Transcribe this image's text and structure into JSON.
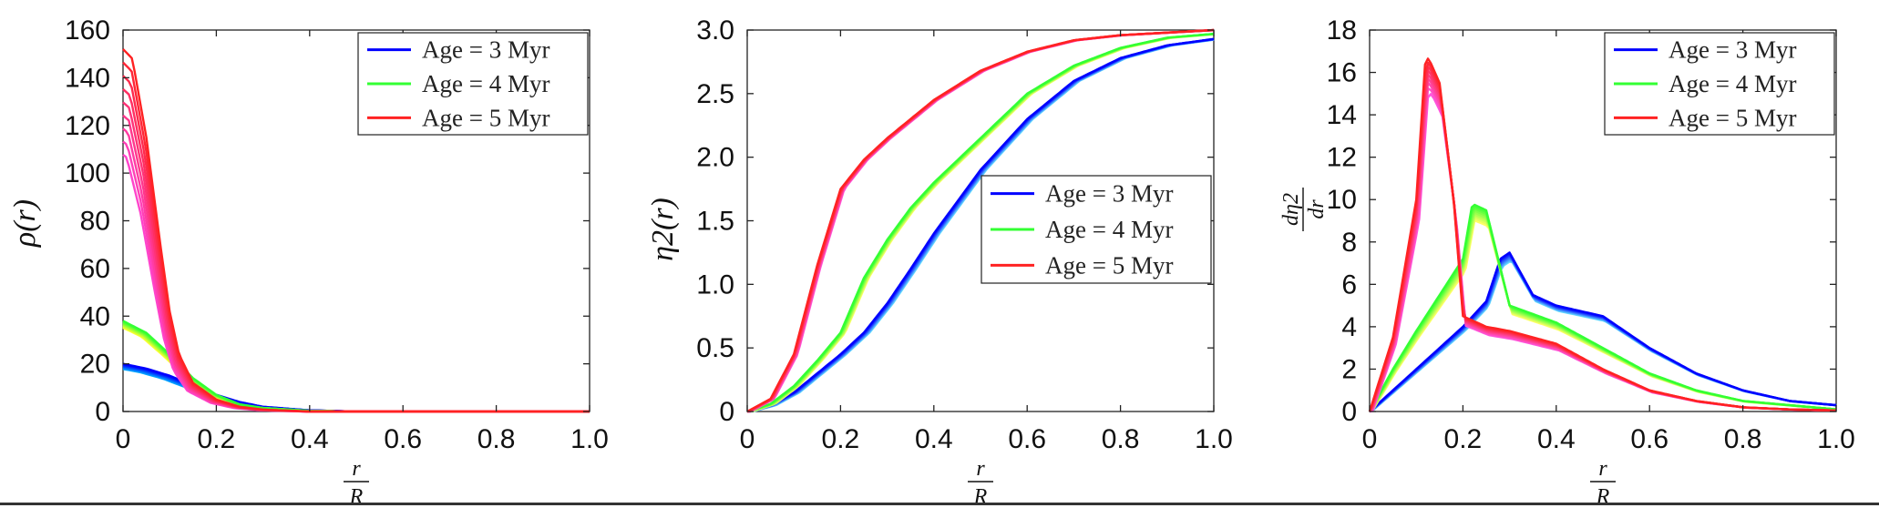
{
  "chart_data": [
    {
      "type": "line",
      "ylabel": "ρ(r)",
      "xlabel": "r/R",
      "xlim": [
        0,
        1.0
      ],
      "ylim": [
        0,
        160
      ],
      "xticks": [
        "0",
        "0.2",
        "0.4",
        "0.6",
        "0.8",
        "1.0"
      ],
      "yticks": [
        "0",
        "20",
        "40",
        "60",
        "80",
        "100",
        "120",
        "140",
        "160"
      ],
      "legend_position": "top-right",
      "legend": [
        "Age = 3 Myr",
        "Age = 4 Myr",
        "Age = 5 Myr"
      ],
      "series": [
        {
          "name": "Age = 3 Myr",
          "color": "#0000ff",
          "x": [
            0,
            0.05,
            0.1,
            0.15,
            0.2,
            0.25,
            0.3,
            0.4,
            0.5,
            1.0
          ],
          "y": [
            20,
            18,
            15,
            11,
            7,
            4,
            2,
            0.5,
            0,
            0
          ]
        },
        {
          "name": "Age = 4 Myr",
          "color": "#33ff33",
          "x": [
            0,
            0.05,
            0.1,
            0.15,
            0.2,
            0.25,
            0.3,
            0.4,
            0.5,
            1.0
          ],
          "y": [
            38,
            33,
            24,
            14,
            7,
            3,
            1.5,
            0.3,
            0,
            0
          ]
        },
        {
          "name": "Age = 5 Myr",
          "color": "#ff2222",
          "x": [
            0,
            0.02,
            0.05,
            0.08,
            0.1,
            0.12,
            0.15,
            0.2,
            0.25,
            0.3,
            0.4,
            1.0
          ],
          "y": [
            152,
            148,
            115,
            70,
            42,
            24,
            12,
            5,
            2,
            0.8,
            0,
            0
          ]
        }
      ]
    },
    {
      "type": "line",
      "ylabel": "η2(r)",
      "xlabel": "r/R",
      "xlim": [
        0,
        1.0
      ],
      "ylim": [
        0,
        3.0
      ],
      "xticks": [
        "0",
        "0.2",
        "0.4",
        "0.6",
        "0.8",
        "1.0"
      ],
      "yticks": [
        "0",
        "0.5",
        "1.0",
        "1.5",
        "2.0",
        "2.5",
        "3.0"
      ],
      "legend_position": "center-right",
      "legend": [
        "Age = 3 Myr",
        "Age = 4 Myr",
        "Age = 5 Myr"
      ],
      "series": [
        {
          "name": "Age = 3 Myr",
          "color": "#0000ff",
          "x": [
            0,
            0.05,
            0.1,
            0.15,
            0.2,
            0.25,
            0.3,
            0.35,
            0.4,
            0.5,
            0.6,
            0.7,
            0.8,
            0.9,
            1.0
          ],
          "y": [
            0,
            0.05,
            0.15,
            0.3,
            0.45,
            0.62,
            0.85,
            1.12,
            1.4,
            1.9,
            2.3,
            2.6,
            2.78,
            2.88,
            2.93
          ]
        },
        {
          "name": "Age = 4 Myr",
          "color": "#33ff33",
          "x": [
            0,
            0.05,
            0.1,
            0.15,
            0.2,
            0.25,
            0.3,
            0.35,
            0.4,
            0.5,
            0.6,
            0.7,
            0.8,
            0.9,
            1.0
          ],
          "y": [
            0,
            0.06,
            0.2,
            0.4,
            0.62,
            1.05,
            1.35,
            1.6,
            1.8,
            2.15,
            2.5,
            2.72,
            2.86,
            2.94,
            2.97
          ]
        },
        {
          "name": "Age = 5 Myr",
          "color": "#ff2222",
          "x": [
            0,
            0.05,
            0.1,
            0.15,
            0.2,
            0.25,
            0.3,
            0.35,
            0.4,
            0.5,
            0.6,
            0.7,
            0.8,
            0.9,
            1.0
          ],
          "y": [
            0,
            0.1,
            0.45,
            1.15,
            1.75,
            1.98,
            2.15,
            2.3,
            2.45,
            2.68,
            2.83,
            2.92,
            2.96,
            2.98,
            3.0
          ]
        }
      ]
    },
    {
      "type": "line",
      "ylabel": "dη2/dr",
      "xlabel": "r/R",
      "xlim": [
        0,
        1.0
      ],
      "ylim": [
        0,
        18
      ],
      "xticks": [
        "0",
        "0.2",
        "0.4",
        "0.6",
        "0.8",
        "1.0"
      ],
      "yticks": [
        "0",
        "2",
        "4",
        "6",
        "8",
        "10",
        "12",
        "14",
        "16",
        "18"
      ],
      "legend_position": "top-right",
      "legend": [
        "Age = 3 Myr",
        "Age = 4 Myr",
        "Age = 5 Myr"
      ],
      "series": [
        {
          "name": "Age = 3 Myr",
          "color": "#0000ff",
          "x": [
            0,
            0.05,
            0.1,
            0.15,
            0.2,
            0.25,
            0.28,
            0.3,
            0.35,
            0.4,
            0.5,
            0.6,
            0.7,
            0.8,
            0.9,
            1.0
          ],
          "y": [
            0,
            1.0,
            2.0,
            3.0,
            4.0,
            5.2,
            7.2,
            7.5,
            5.5,
            5.0,
            4.5,
            3.0,
            1.8,
            1.0,
            0.5,
            0.3
          ]
        },
        {
          "name": "Age = 4 Myr",
          "color": "#33ff33",
          "x": [
            0,
            0.05,
            0.1,
            0.15,
            0.2,
            0.22,
            0.25,
            0.3,
            0.4,
            0.5,
            0.6,
            0.7,
            0.8,
            0.9,
            1.0
          ],
          "y": [
            0,
            2.0,
            3.8,
            5.5,
            7.2,
            9.8,
            9.5,
            5.0,
            4.2,
            3.0,
            1.8,
            1.0,
            0.5,
            0.3,
            0.1
          ]
        },
        {
          "name": "Age = 5 Myr",
          "color": "#ff2222",
          "x": [
            0,
            0.05,
            0.1,
            0.12,
            0.13,
            0.15,
            0.18,
            0.2,
            0.25,
            0.3,
            0.4,
            0.5,
            0.6,
            0.7,
            0.8,
            0.9,
            1.0
          ],
          "y": [
            0,
            3.5,
            10.0,
            16.8,
            16.5,
            15.5,
            10.0,
            4.5,
            4.0,
            3.8,
            3.2,
            2.0,
            1.0,
            0.5,
            0.2,
            0.1,
            0.05
          ]
        }
      ]
    }
  ]
}
